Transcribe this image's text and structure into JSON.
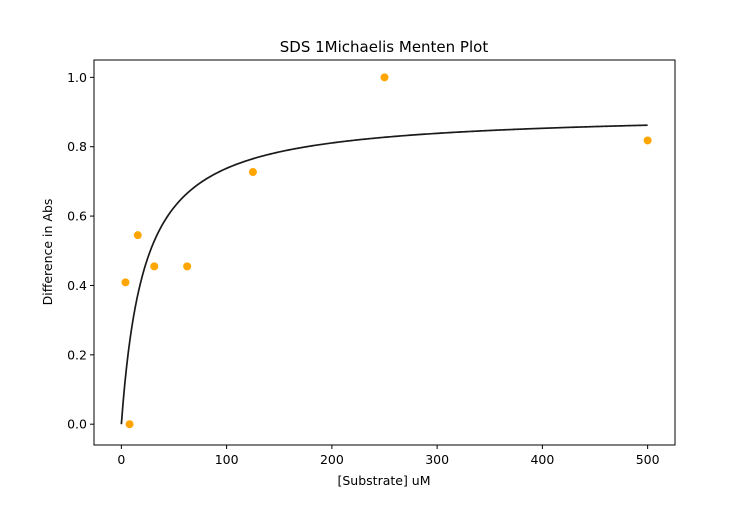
{
  "chart_data": {
    "type": "scatter",
    "title": "SDS 1Michaelis Menten Plot",
    "xlabel": "[Substrate] uM",
    "ylabel": "Difference in Abs",
    "xlim": [
      -26,
      526
    ],
    "ylim": [
      -0.06,
      1.05
    ],
    "xticks": [
      0,
      100,
      200,
      300,
      400,
      500
    ],
    "yticks": [
      0.0,
      0.2,
      0.4,
      0.6,
      0.8,
      1.0
    ],
    "xtick_labels": [
      "0",
      "100",
      "200",
      "300",
      "400",
      "500"
    ],
    "ytick_labels": [
      "0.0",
      "0.2",
      "0.4",
      "0.6",
      "0.8",
      "1.0"
    ],
    "grid": false,
    "series": [
      {
        "type": "scatter",
        "color": "#ffa500",
        "x": [
          3.9,
          7.8,
          15.6,
          31.25,
          62.5,
          125,
          250,
          500
        ],
        "y": [
          0.409,
          0.0,
          0.545,
          0.455,
          0.455,
          0.727,
          1.0,
          0.818
        ]
      },
      {
        "type": "line",
        "color": "#1a1a1a",
        "model": "michaelis-menten",
        "vmax": 0.9,
        "km": 22,
        "x_range": [
          0,
          500
        ]
      }
    ]
  }
}
